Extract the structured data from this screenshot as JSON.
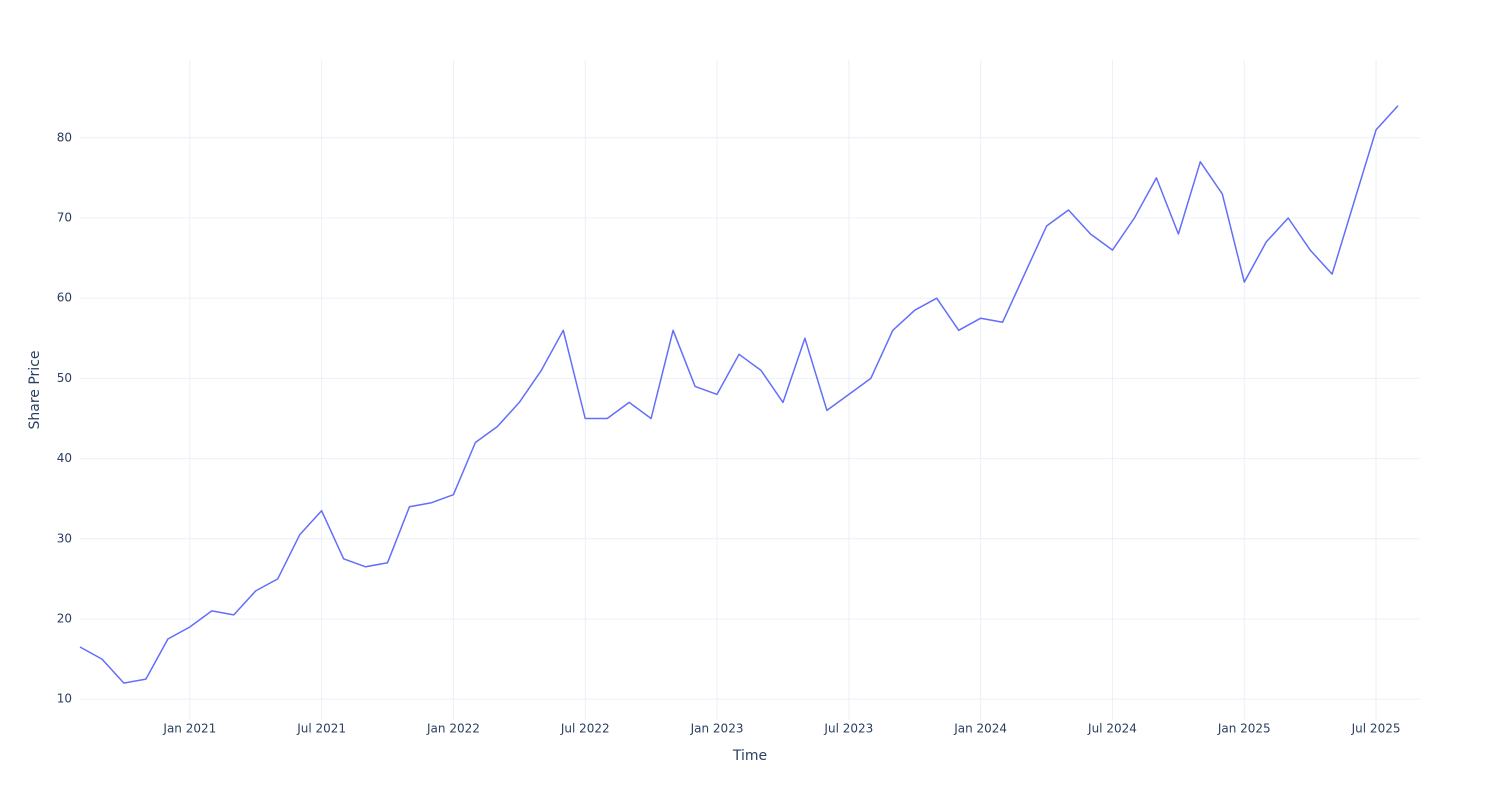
{
  "chart_data": {
    "type": "line",
    "x_label": "Time",
    "y_label": "Share Price",
    "x": [
      "2020-08",
      "2020-09",
      "2020-10",
      "2020-11",
      "2020-12",
      "2021-01",
      "2021-02",
      "2021-03",
      "2021-04",
      "2021-05",
      "2021-06",
      "2021-07",
      "2021-08",
      "2021-09",
      "2021-10",
      "2021-11",
      "2021-12",
      "2022-01",
      "2022-02",
      "2022-03",
      "2022-04",
      "2022-05",
      "2022-06",
      "2022-07",
      "2022-08",
      "2022-09",
      "2022-10",
      "2022-11",
      "2022-12",
      "2023-01",
      "2023-02",
      "2023-03",
      "2023-04",
      "2023-05",
      "2023-06",
      "2023-07",
      "2023-08",
      "2023-09",
      "2023-10",
      "2023-11",
      "2023-12",
      "2024-01",
      "2024-02",
      "2024-03",
      "2024-04",
      "2024-05",
      "2024-06",
      "2024-07",
      "2024-08",
      "2024-09",
      "2024-10",
      "2024-11",
      "2024-12",
      "2025-01",
      "2025-02",
      "2025-03",
      "2025-04",
      "2025-05",
      "2025-06",
      "2025-07",
      "2025-08"
    ],
    "series": [
      {
        "name": "Share Price",
        "color": "#636efa",
        "values": [
          16.5,
          15,
          12,
          12.5,
          17.5,
          19,
          21,
          20.5,
          23.5,
          25,
          30.5,
          33.5,
          27.5,
          26.5,
          27,
          34,
          34.5,
          35.5,
          42,
          44,
          47,
          51,
          56,
          45,
          45,
          47,
          45,
          56,
          49,
          48,
          53,
          51,
          47,
          55,
          46,
          48,
          50,
          56,
          58.5,
          60,
          56,
          57.5,
          57,
          63,
          69,
          71,
          68,
          66,
          70,
          75,
          68,
          77,
          73,
          62,
          67,
          70,
          66,
          63,
          72,
          81,
          84
        ]
      }
    ],
    "xlim": [
      "2020-08",
      "2025-09"
    ],
    "xticks": [
      {
        "value": "2021-01",
        "label": "Jan 2021"
      },
      {
        "value": "2021-07",
        "label": "Jul 2021"
      },
      {
        "value": "2022-01",
        "label": "Jan 2022"
      },
      {
        "value": "2022-07",
        "label": "Jul 2022"
      },
      {
        "value": "2023-01",
        "label": "Jan 2023"
      },
      {
        "value": "2023-07",
        "label": "Jul 2023"
      },
      {
        "value": "2024-01",
        "label": "Jan 2024"
      },
      {
        "value": "2024-07",
        "label": "Jul 2024"
      },
      {
        "value": "2025-01",
        "label": "Jan 2025"
      },
      {
        "value": "2025-07",
        "label": "Jul 2025"
      }
    ],
    "ylim": [
      7.4,
      89.7
    ],
    "yticks": [
      10,
      20,
      30,
      40,
      50,
      60,
      70,
      80
    ],
    "grid": true
  }
}
